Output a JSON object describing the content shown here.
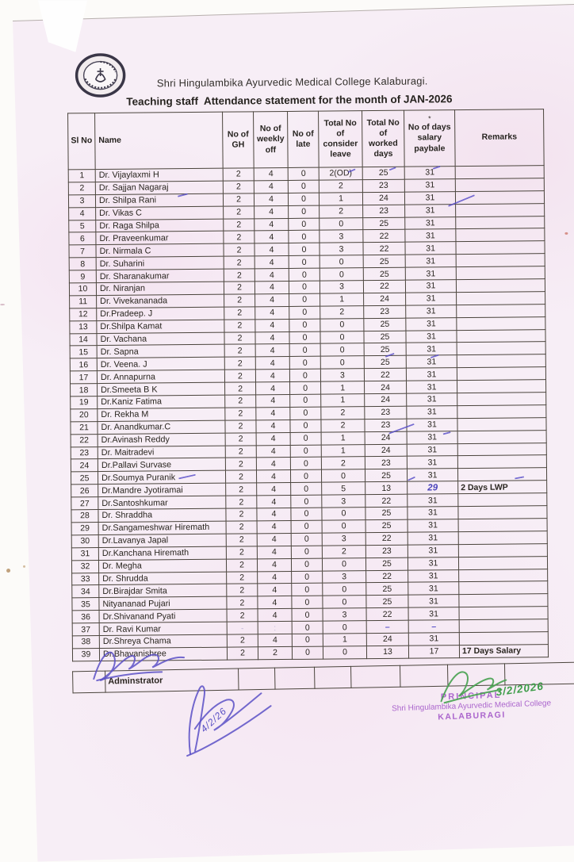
{
  "page": {
    "college_name": "Shri Hingulambika Ayurvedic Medical College Kalaburagi.",
    "title": "Teaching staff  Attendance statement for the month of JAN-2026",
    "header_note_mark": "*"
  },
  "table": {
    "headers": [
      "Sl No",
      "Name",
      "No of GH",
      "No of weekly off",
      "No of late",
      "Total No of consider leave",
      "Total No of worked days",
      "No of days salary paybale",
      "Remarks"
    ],
    "rows": [
      [
        "1",
        "Dr. Vijaylaxmi H",
        "2",
        "4",
        "0",
        "2(OD)",
        "25",
        "31",
        ""
      ],
      [
        "2",
        "Dr. Sajjan Nagaraj",
        "2",
        "4",
        "0",
        "2",
        "23",
        "31",
        ""
      ],
      [
        "3",
        "Dr. Shilpa Rani",
        "2",
        "4",
        "0",
        "1",
        "24",
        "31",
        ""
      ],
      [
        "4",
        "Dr. Vikas C",
        "2",
        "4",
        "0",
        "2",
        "23",
        "31",
        ""
      ],
      [
        "5",
        "Dr. Raga Shilpa",
        "2",
        "4",
        "0",
        "0",
        "25",
        "31",
        ""
      ],
      [
        "6",
        "Dr. Praveenkumar",
        "2",
        "4",
        "0",
        "3",
        "22",
        "31",
        ""
      ],
      [
        "7",
        "Dr. Nirmala C",
        "2",
        "4",
        "0",
        "3",
        "22",
        "31",
        ""
      ],
      [
        "8",
        "Dr. Suharini",
        "2",
        "4",
        "0",
        "0",
        "25",
        "31",
        ""
      ],
      [
        "9",
        "Dr. Sharanakumar",
        "2",
        "4",
        "0",
        "0",
        "25",
        "31",
        ""
      ],
      [
        "10",
        "Dr. Niranjan",
        "2",
        "4",
        "0",
        "3",
        "22",
        "31",
        ""
      ],
      [
        "11",
        "Dr. Vivekananada",
        "2",
        "4",
        "0",
        "1",
        "24",
        "31",
        ""
      ],
      [
        "12",
        "Dr.Pradeep. J",
        "2",
        "4",
        "0",
        "2",
        "23",
        "31",
        ""
      ],
      [
        "13",
        "Dr.Shilpa Kamat",
        "2",
        "4",
        "0",
        "0",
        "25",
        "31",
        ""
      ],
      [
        "14",
        "Dr. Vachana",
        "2",
        "4",
        "0",
        "0",
        "25",
        "31",
        ""
      ],
      [
        "15",
        "Dr. Sapna",
        "2",
        "4",
        "0",
        "0",
        "25",
        "31",
        ""
      ],
      [
        "16",
        "Dr. Veena. J",
        "2",
        "4",
        "0",
        "0",
        "25",
        "31",
        ""
      ],
      [
        "17",
        "Dr.  Annapurna",
        "2",
        "4",
        "0",
        "3",
        "22",
        "31",
        ""
      ],
      [
        "18",
        "Dr.Smeeta B K",
        "2",
        "4",
        "0",
        "1",
        "24",
        "31",
        ""
      ],
      [
        "19",
        "Dr.Kaniz Fatima",
        "2",
        "4",
        "0",
        "1",
        "24",
        "31",
        ""
      ],
      [
        "20",
        "Dr. Rekha M",
        "2",
        "4",
        "0",
        "2",
        "23",
        "31",
        ""
      ],
      [
        "21",
        "Dr. Anandkumar.C",
        "2",
        "4",
        "0",
        "2",
        "23",
        "31",
        ""
      ],
      [
        "22",
        "Dr.Avinash Reddy",
        "2",
        "4",
        "0",
        "1",
        "24",
        "31",
        ""
      ],
      [
        "23",
        "Dr. Maitradevi",
        "2",
        "4",
        "0",
        "1",
        "24",
        "31",
        ""
      ],
      [
        "24",
        "Dr.Pallavi Survase",
        "2",
        "4",
        "0",
        "2",
        "23",
        "31",
        ""
      ],
      [
        "25",
        "Dr.Soumya Puranik",
        "2",
        "4",
        "0",
        "0",
        "25",
        "31",
        ""
      ],
      [
        "26",
        "Dr.Mandre Jyotiramai",
        "2",
        "4",
        "0",
        "5",
        "13",
        "29",
        "2 Days LWP",
        {
          "salary": "pen"
        }
      ],
      [
        "27",
        "Dr.Santoshkumar",
        "2",
        "4",
        "0",
        "3",
        "22",
        "31",
        ""
      ],
      [
        "28",
        "Dr. Shraddha",
        "2",
        "4",
        "0",
        "0",
        "25",
        "31",
        ""
      ],
      [
        "29",
        "Dr.Sangameshwar Hiremath",
        "2",
        "4",
        "0",
        "0",
        "25",
        "31",
        ""
      ],
      [
        "30",
        "Dr.Lavanya Japal",
        "2",
        "4",
        "0",
        "3",
        "22",
        "31",
        ""
      ],
      [
        "31",
        "Dr.Kanchana Hiremath",
        "2",
        "4",
        "0",
        "2",
        "23",
        "31",
        ""
      ],
      [
        "32",
        "Dr. Megha",
        "2",
        "4",
        "0",
        "0",
        "25",
        "31",
        ""
      ],
      [
        "33",
        "Dr. Shrudda",
        "2",
        "4",
        "0",
        "3",
        "22",
        "31",
        ""
      ],
      [
        "34",
        "Dr.Birajdar Smita",
        "2",
        "4",
        "0",
        "0",
        "25",
        "31",
        ""
      ],
      [
        "35",
        "Nityananad Pujari",
        "2",
        "4",
        "0",
        "0",
        "25",
        "31",
        ""
      ],
      [
        "36",
        "Dr.Shivanand Pyati",
        "2",
        "4",
        "0",
        "3",
        "22",
        "31",
        ""
      ],
      [
        "37",
        "Dr. Ravi Kumar",
        "-",
        ":",
        "0",
        "0",
        "–",
        "–",
        "",
        {
          "gh": "faint",
          "weekly": "faint",
          "worked": "pendash",
          "salary": "pendash"
        }
      ],
      [
        "38",
        "Dr.Shreya Chama",
        "2",
        "4",
        "0",
        "1",
        "24",
        "31",
        ""
      ],
      [
        "39",
        "Dr.Bhavanishree",
        "2",
        "2",
        "0",
        "0",
        "13",
        "17",
        "17 Days Salary"
      ]
    ]
  },
  "footer": {
    "administrator_label": "Adminstrator",
    "principal_label": "Principal"
  },
  "stamp": {
    "line1": "PRINCIPAL",
    "line2": "Shri Hingulambika Ayurvedic Medical College",
    "line3": "KALABURAGI"
  },
  "annotations": {
    "principal_date": "3/2/2026",
    "admin_date": "4/2/26"
  },
  "colors": {
    "paper": "#f7eef6",
    "ink": "#2b2620",
    "pen_blue": "#5a50c5",
    "pen_green": "#46a14f",
    "stamp_purple": "#a053c7"
  }
}
